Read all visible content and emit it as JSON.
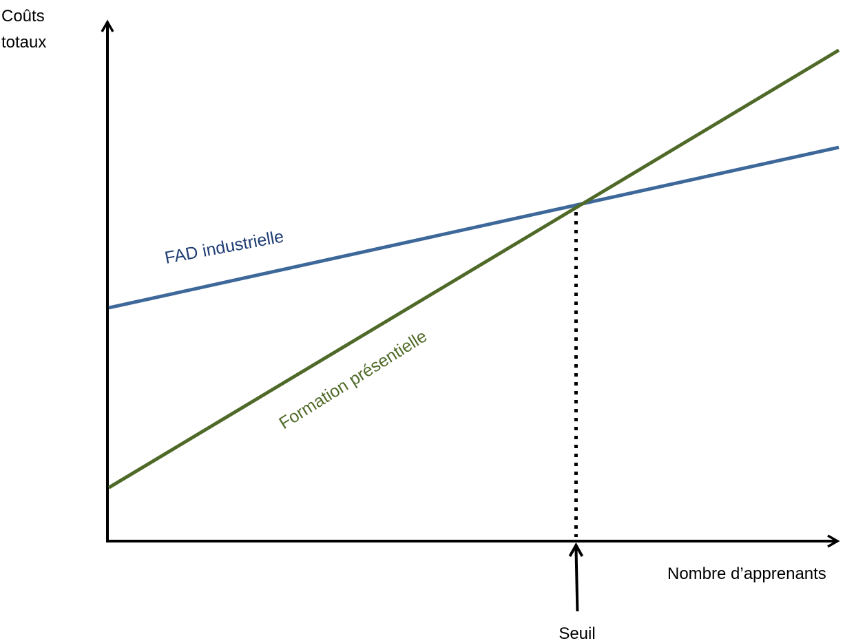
{
  "chart_data": {
    "type": "line",
    "title": "",
    "ylabel_lines": [
      "Coûts",
      "totaux"
    ],
    "xlabel": "Nombre d’apprenants",
    "xlim": [
      0,
      10
    ],
    "ylim": [
      0,
      10
    ],
    "grid": false,
    "legend": "inline labels on lines",
    "series": [
      {
        "name": "FAD industrielle",
        "color": "#3D6899",
        "label_color": "#1F3D73",
        "x": [
          0,
          10
        ],
        "y": [
          4.8,
          8.1
        ]
      },
      {
        "name": "Formation présentielle",
        "color": "#4F6A28",
        "label_color": "#4F6A28",
        "x": [
          0,
          10
        ],
        "y": [
          1.1,
          10.1
        ]
      }
    ],
    "threshold": {
      "label": "Seuil",
      "x": 6.4,
      "line_style": "dotted"
    }
  }
}
